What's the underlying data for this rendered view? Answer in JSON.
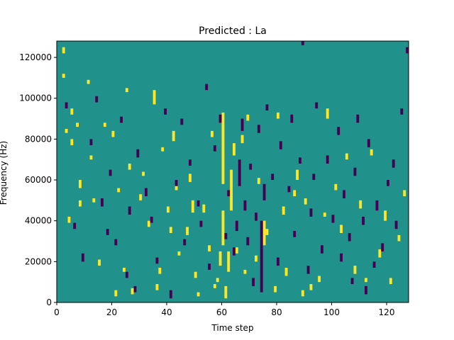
{
  "chart_data": {
    "type": "heatmap",
    "title": "Predicted : La",
    "xlabel": "Time step",
    "ylabel": "Frequency (Hz)",
    "xlim": [
      0,
      128
    ],
    "ylim": [
      0,
      128000
    ],
    "grid": false,
    "legend": "none",
    "xticks": [
      0,
      20,
      40,
      60,
      80,
      100,
      120
    ],
    "yticks": [
      0,
      20000,
      40000,
      60000,
      80000,
      100000,
      120000
    ],
    "xtick_labels": [
      "0",
      "20",
      "40",
      "60",
      "80",
      "100",
      "120"
    ],
    "ytick_labels": [
      "0",
      "20000",
      "40000",
      "60000",
      "80000",
      "100000",
      "120000"
    ],
    "grid_size": {
      "time_steps": 128,
      "frequency_bins": 128,
      "bin_width_hz": 1000
    },
    "colors": {
      "background": "#21918c",
      "low": "#440154",
      "high": "#fde725",
      "axis": "#000000"
    },
    "value_meaning": {
      "background": 0,
      "low": -1,
      "high": 1
    },
    "background_value": 0,
    "high_cells": [
      [
        2,
        122,
        125
      ],
      [
        2,
        110,
        112
      ],
      [
        3,
        83,
        85
      ],
      [
        4,
        39,
        42
      ],
      [
        5,
        92,
        95
      ],
      [
        5,
        77,
        80
      ],
      [
        7,
        86,
        88
      ],
      [
        8,
        56,
        60
      ],
      [
        8,
        47,
        50
      ],
      [
        11,
        107,
        109
      ],
      [
        12,
        70,
        72
      ],
      [
        13,
        49,
        51
      ],
      [
        15,
        18,
        21
      ],
      [
        17,
        86,
        88
      ],
      [
        20,
        81,
        84
      ],
      [
        21,
        3,
        6
      ],
      [
        22,
        54,
        56
      ],
      [
        24,
        15,
        17
      ],
      [
        25,
        103,
        105
      ],
      [
        26,
        65,
        68
      ],
      [
        27,
        4,
        7
      ],
      [
        30,
        50,
        53
      ],
      [
        31,
        62,
        64
      ],
      [
        33,
        37,
        40
      ],
      [
        35,
        97,
        104
      ],
      [
        36,
        6,
        9
      ],
      [
        37,
        14,
        17
      ],
      [
        38,
        74,
        76
      ],
      [
        40,
        44,
        47
      ],
      [
        41,
        34,
        37
      ],
      [
        42,
        79,
        84
      ],
      [
        43,
        55,
        58
      ],
      [
        44,
        23,
        25
      ],
      [
        47,
        33,
        37
      ],
      [
        48,
        59,
        63
      ],
      [
        49,
        44,
        50
      ],
      [
        50,
        12,
        15
      ],
      [
        51,
        3,
        5
      ],
      [
        53,
        44,
        48
      ],
      [
        55,
        25,
        28
      ],
      [
        56,
        81,
        84
      ],
      [
        57,
        7,
        9
      ],
      [
        58,
        10,
        12
      ],
      [
        59,
        18,
        25
      ],
      [
        60,
        28,
        45
      ],
      [
        60,
        58,
        93
      ],
      [
        61,
        2,
        8
      ],
      [
        62,
        15,
        25
      ],
      [
        63,
        45,
        65
      ],
      [
        64,
        72,
        78
      ],
      [
        65,
        24,
        27
      ],
      [
        67,
        78,
        82
      ],
      [
        68,
        14,
        16
      ],
      [
        69,
        89,
        92
      ],
      [
        72,
        20,
        23
      ],
      [
        73,
        58,
        61
      ],
      [
        75,
        28,
        40
      ],
      [
        76,
        33,
        36
      ],
      [
        79,
        5,
        8
      ],
      [
        80,
        90,
        93
      ],
      [
        82,
        43,
        47
      ],
      [
        83,
        13,
        17
      ],
      [
        86,
        52,
        55
      ],
      [
        87,
        60,
        65
      ],
      [
        89,
        3,
        6
      ],
      [
        90,
        48,
        51
      ],
      [
        92,
        6,
        9
      ],
      [
        95,
        10,
        13
      ],
      [
        97,
        42,
        44
      ],
      [
        98,
        90,
        95
      ],
      [
        101,
        55,
        58
      ],
      [
        103,
        34,
        38
      ],
      [
        105,
        70,
        73
      ],
      [
        108,
        14,
        18
      ],
      [
        110,
        46,
        50
      ],
      [
        112,
        10,
        12
      ],
      [
        114,
        72,
        75
      ],
      [
        117,
        22,
        26
      ],
      [
        119,
        40,
        45
      ],
      [
        121,
        9,
        12
      ],
      [
        124,
        30,
        33
      ],
      [
        126,
        52,
        55
      ]
    ],
    "low_cells": [
      [
        3,
        95,
        98
      ],
      [
        6,
        36,
        39
      ],
      [
        9,
        20,
        24
      ],
      [
        12,
        77,
        80
      ],
      [
        14,
        98,
        101
      ],
      [
        16,
        47,
        51
      ],
      [
        18,
        33,
        36
      ],
      [
        19,
        62,
        65
      ],
      [
        21,
        28,
        31
      ],
      [
        23,
        88,
        91
      ],
      [
        25,
        12,
        15
      ],
      [
        26,
        43,
        47
      ],
      [
        28,
        5,
        8
      ],
      [
        29,
        71,
        75
      ],
      [
        32,
        52,
        56
      ],
      [
        34,
        39,
        42
      ],
      [
        36,
        19,
        22
      ],
      [
        39,
        92,
        95
      ],
      [
        41,
        2,
        6
      ],
      [
        43,
        57,
        60
      ],
      [
        45,
        87,
        90
      ],
      [
        46,
        28,
        31
      ],
      [
        48,
        67,
        70
      ],
      [
        51,
        47,
        50
      ],
      [
        52,
        37,
        40
      ],
      [
        54,
        104,
        107
      ],
      [
        55,
        16,
        19
      ],
      [
        57,
        74,
        77
      ],
      [
        59,
        88,
        92
      ],
      [
        61,
        31,
        34
      ],
      [
        62,
        52,
        55
      ],
      [
        64,
        23,
        27
      ],
      [
        65,
        35,
        40
      ],
      [
        66,
        57,
        70
      ],
      [
        67,
        84,
        90
      ],
      [
        68,
        45,
        50
      ],
      [
        69,
        28,
        32
      ],
      [
        70,
        65,
        68
      ],
      [
        71,
        8,
        12
      ],
      [
        72,
        40,
        44
      ],
      [
        73,
        83,
        87
      ],
      [
        74,
        5,
        40
      ],
      [
        75,
        50,
        58
      ],
      [
        76,
        94,
        97
      ],
      [
        78,
        60,
        63
      ],
      [
        80,
        18,
        22
      ],
      [
        81,
        75,
        79
      ],
      [
        84,
        54,
        57
      ],
      [
        85,
        88,
        92
      ],
      [
        86,
        32,
        35
      ],
      [
        88,
        68,
        71
      ],
      [
        89,
        126,
        128
      ],
      [
        91,
        14,
        18
      ],
      [
        92,
        42,
        46
      ],
      [
        93,
        60,
        63
      ],
      [
        94,
        95,
        98
      ],
      [
        96,
        24,
        28
      ],
      [
        98,
        68,
        72
      ],
      [
        100,
        39,
        43
      ],
      [
        102,
        82,
        86
      ],
      [
        103,
        20,
        24
      ],
      [
        104,
        51,
        55
      ],
      [
        106,
        30,
        34
      ],
      [
        107,
        9,
        12
      ],
      [
        108,
        62,
        66
      ],
      [
        109,
        88,
        92
      ],
      [
        111,
        38,
        42
      ],
      [
        112,
        4,
        8
      ],
      [
        113,
        76,
        80
      ],
      [
        115,
        17,
        20
      ],
      [
        116,
        45,
        50
      ],
      [
        118,
        25,
        29
      ],
      [
        120,
        57,
        60
      ],
      [
        122,
        66,
        70
      ],
      [
        123,
        36,
        40
      ],
      [
        125,
        92,
        95
      ],
      [
        127,
        122,
        125
      ]
    ]
  }
}
